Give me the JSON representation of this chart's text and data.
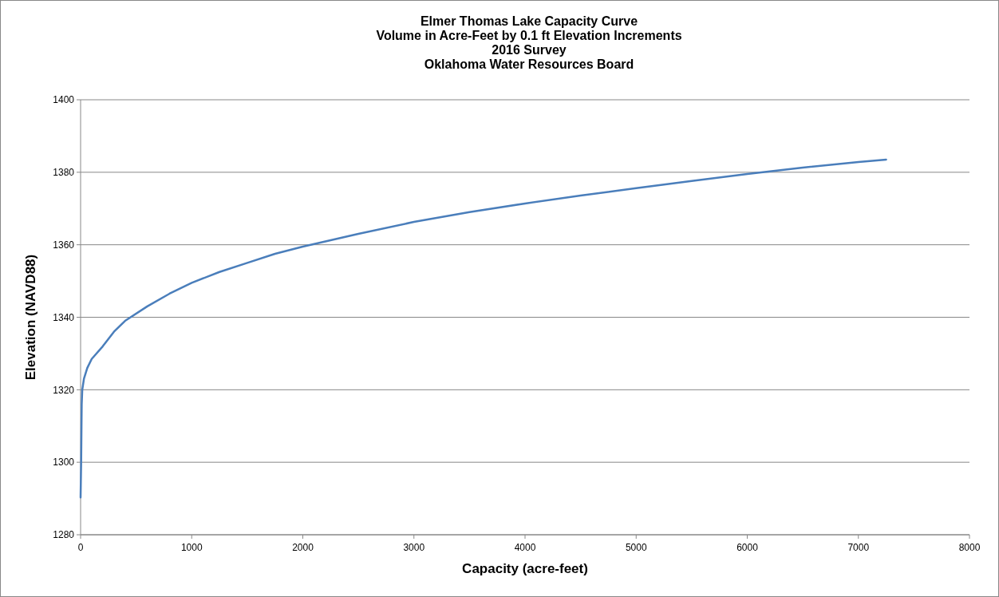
{
  "chart_data": {
    "type": "line",
    "title": "Elmer Thomas Lake Capacity Curve",
    "subtitle": "Volume in Acre-Feet by 0.1 ft Elevation Increments\n2016 Survey\nOklahoma Water Resources Board",
    "xlabel": "Capacity (acre-feet)",
    "ylabel": "Elevation (NAVD88)",
    "x": [
      0,
      5,
      8,
      10,
      15,
      30,
      60,
      100,
      200,
      300,
      400,
      600,
      800,
      1000,
      1250,
      1500,
      1750,
      2000,
      2500,
      3000,
      3500,
      4000,
      4500,
      5000,
      5500,
      6000,
      6500,
      7000,
      7250
    ],
    "series": [
      {
        "color": "#4a7ebb",
        "values": [
          1290.3,
          1300,
          1310,
          1316,
          1320,
          1323,
          1326,
          1328.5,
          1332,
          1336,
          1339,
          1343,
          1346.5,
          1349.5,
          1352.5,
          1355,
          1357.5,
          1359.5,
          1363,
          1366.3,
          1369,
          1371.4,
          1373.6,
          1375.6,
          1377.6,
          1379.5,
          1381.3,
          1382.8,
          1383.5
        ]
      }
    ],
    "xlim": [
      0,
      8000
    ],
    "xticks": [
      0,
      1000,
      2000,
      3000,
      4000,
      5000,
      6000,
      7000,
      8000
    ],
    "ylim": [
      1280,
      1400
    ],
    "yticks": [
      1280,
      1300,
      1320,
      1340,
      1360,
      1380,
      1400
    ],
    "grid": "y",
    "marker": "none",
    "line_style": "solid"
  }
}
